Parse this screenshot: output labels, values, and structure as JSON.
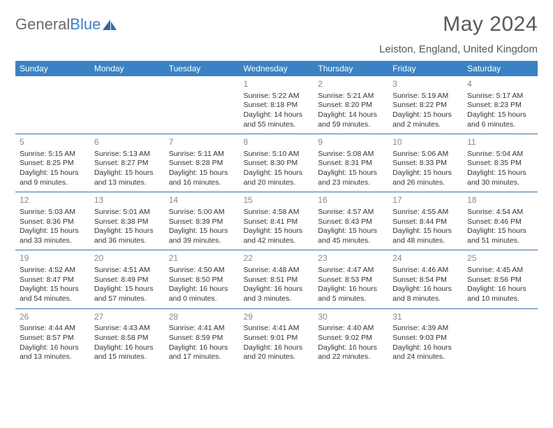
{
  "logo": {
    "text1": "General",
    "text2": "Blue"
  },
  "title": "May 2024",
  "location": "Leiston, England, United Kingdom",
  "colors": {
    "header_bg": "#3b82c4",
    "header_text": "#ffffff",
    "border": "#3b6fa0",
    "daynum": "#888888",
    "body_text": "#333333",
    "title_color": "#595959"
  },
  "day_names": [
    "Sunday",
    "Monday",
    "Tuesday",
    "Wednesday",
    "Thursday",
    "Friday",
    "Saturday"
  ],
  "weeks": [
    [
      null,
      null,
      null,
      {
        "n": "1",
        "sr": "5:22 AM",
        "ss": "8:18 PM",
        "dl": "14 hours and 55 minutes."
      },
      {
        "n": "2",
        "sr": "5:21 AM",
        "ss": "8:20 PM",
        "dl": "14 hours and 59 minutes."
      },
      {
        "n": "3",
        "sr": "5:19 AM",
        "ss": "8:22 PM",
        "dl": "15 hours and 2 minutes."
      },
      {
        "n": "4",
        "sr": "5:17 AM",
        "ss": "8:23 PM",
        "dl": "15 hours and 6 minutes."
      }
    ],
    [
      {
        "n": "5",
        "sr": "5:15 AM",
        "ss": "8:25 PM",
        "dl": "15 hours and 9 minutes."
      },
      {
        "n": "6",
        "sr": "5:13 AM",
        "ss": "8:27 PM",
        "dl": "15 hours and 13 minutes."
      },
      {
        "n": "7",
        "sr": "5:11 AM",
        "ss": "8:28 PM",
        "dl": "15 hours and 16 minutes."
      },
      {
        "n": "8",
        "sr": "5:10 AM",
        "ss": "8:30 PM",
        "dl": "15 hours and 20 minutes."
      },
      {
        "n": "9",
        "sr": "5:08 AM",
        "ss": "8:31 PM",
        "dl": "15 hours and 23 minutes."
      },
      {
        "n": "10",
        "sr": "5:06 AM",
        "ss": "8:33 PM",
        "dl": "15 hours and 26 minutes."
      },
      {
        "n": "11",
        "sr": "5:04 AM",
        "ss": "8:35 PM",
        "dl": "15 hours and 30 minutes."
      }
    ],
    [
      {
        "n": "12",
        "sr": "5:03 AM",
        "ss": "8:36 PM",
        "dl": "15 hours and 33 minutes."
      },
      {
        "n": "13",
        "sr": "5:01 AM",
        "ss": "8:38 PM",
        "dl": "15 hours and 36 minutes."
      },
      {
        "n": "14",
        "sr": "5:00 AM",
        "ss": "8:39 PM",
        "dl": "15 hours and 39 minutes."
      },
      {
        "n": "15",
        "sr": "4:58 AM",
        "ss": "8:41 PM",
        "dl": "15 hours and 42 minutes."
      },
      {
        "n": "16",
        "sr": "4:57 AM",
        "ss": "8:43 PM",
        "dl": "15 hours and 45 minutes."
      },
      {
        "n": "17",
        "sr": "4:55 AM",
        "ss": "8:44 PM",
        "dl": "15 hours and 48 minutes."
      },
      {
        "n": "18",
        "sr": "4:54 AM",
        "ss": "8:46 PM",
        "dl": "15 hours and 51 minutes."
      }
    ],
    [
      {
        "n": "19",
        "sr": "4:52 AM",
        "ss": "8:47 PM",
        "dl": "15 hours and 54 minutes."
      },
      {
        "n": "20",
        "sr": "4:51 AM",
        "ss": "8:49 PM",
        "dl": "15 hours and 57 minutes."
      },
      {
        "n": "21",
        "sr": "4:50 AM",
        "ss": "8:50 PM",
        "dl": "16 hours and 0 minutes."
      },
      {
        "n": "22",
        "sr": "4:48 AM",
        "ss": "8:51 PM",
        "dl": "16 hours and 3 minutes."
      },
      {
        "n": "23",
        "sr": "4:47 AM",
        "ss": "8:53 PM",
        "dl": "16 hours and 5 minutes."
      },
      {
        "n": "24",
        "sr": "4:46 AM",
        "ss": "8:54 PM",
        "dl": "16 hours and 8 minutes."
      },
      {
        "n": "25",
        "sr": "4:45 AM",
        "ss": "8:56 PM",
        "dl": "16 hours and 10 minutes."
      }
    ],
    [
      {
        "n": "26",
        "sr": "4:44 AM",
        "ss": "8:57 PM",
        "dl": "16 hours and 13 minutes."
      },
      {
        "n": "27",
        "sr": "4:43 AM",
        "ss": "8:58 PM",
        "dl": "16 hours and 15 minutes."
      },
      {
        "n": "28",
        "sr": "4:41 AM",
        "ss": "8:59 PM",
        "dl": "16 hours and 17 minutes."
      },
      {
        "n": "29",
        "sr": "4:41 AM",
        "ss": "9:01 PM",
        "dl": "16 hours and 20 minutes."
      },
      {
        "n": "30",
        "sr": "4:40 AM",
        "ss": "9:02 PM",
        "dl": "16 hours and 22 minutes."
      },
      {
        "n": "31",
        "sr": "4:39 AM",
        "ss": "9:03 PM",
        "dl": "16 hours and 24 minutes."
      },
      null
    ]
  ]
}
